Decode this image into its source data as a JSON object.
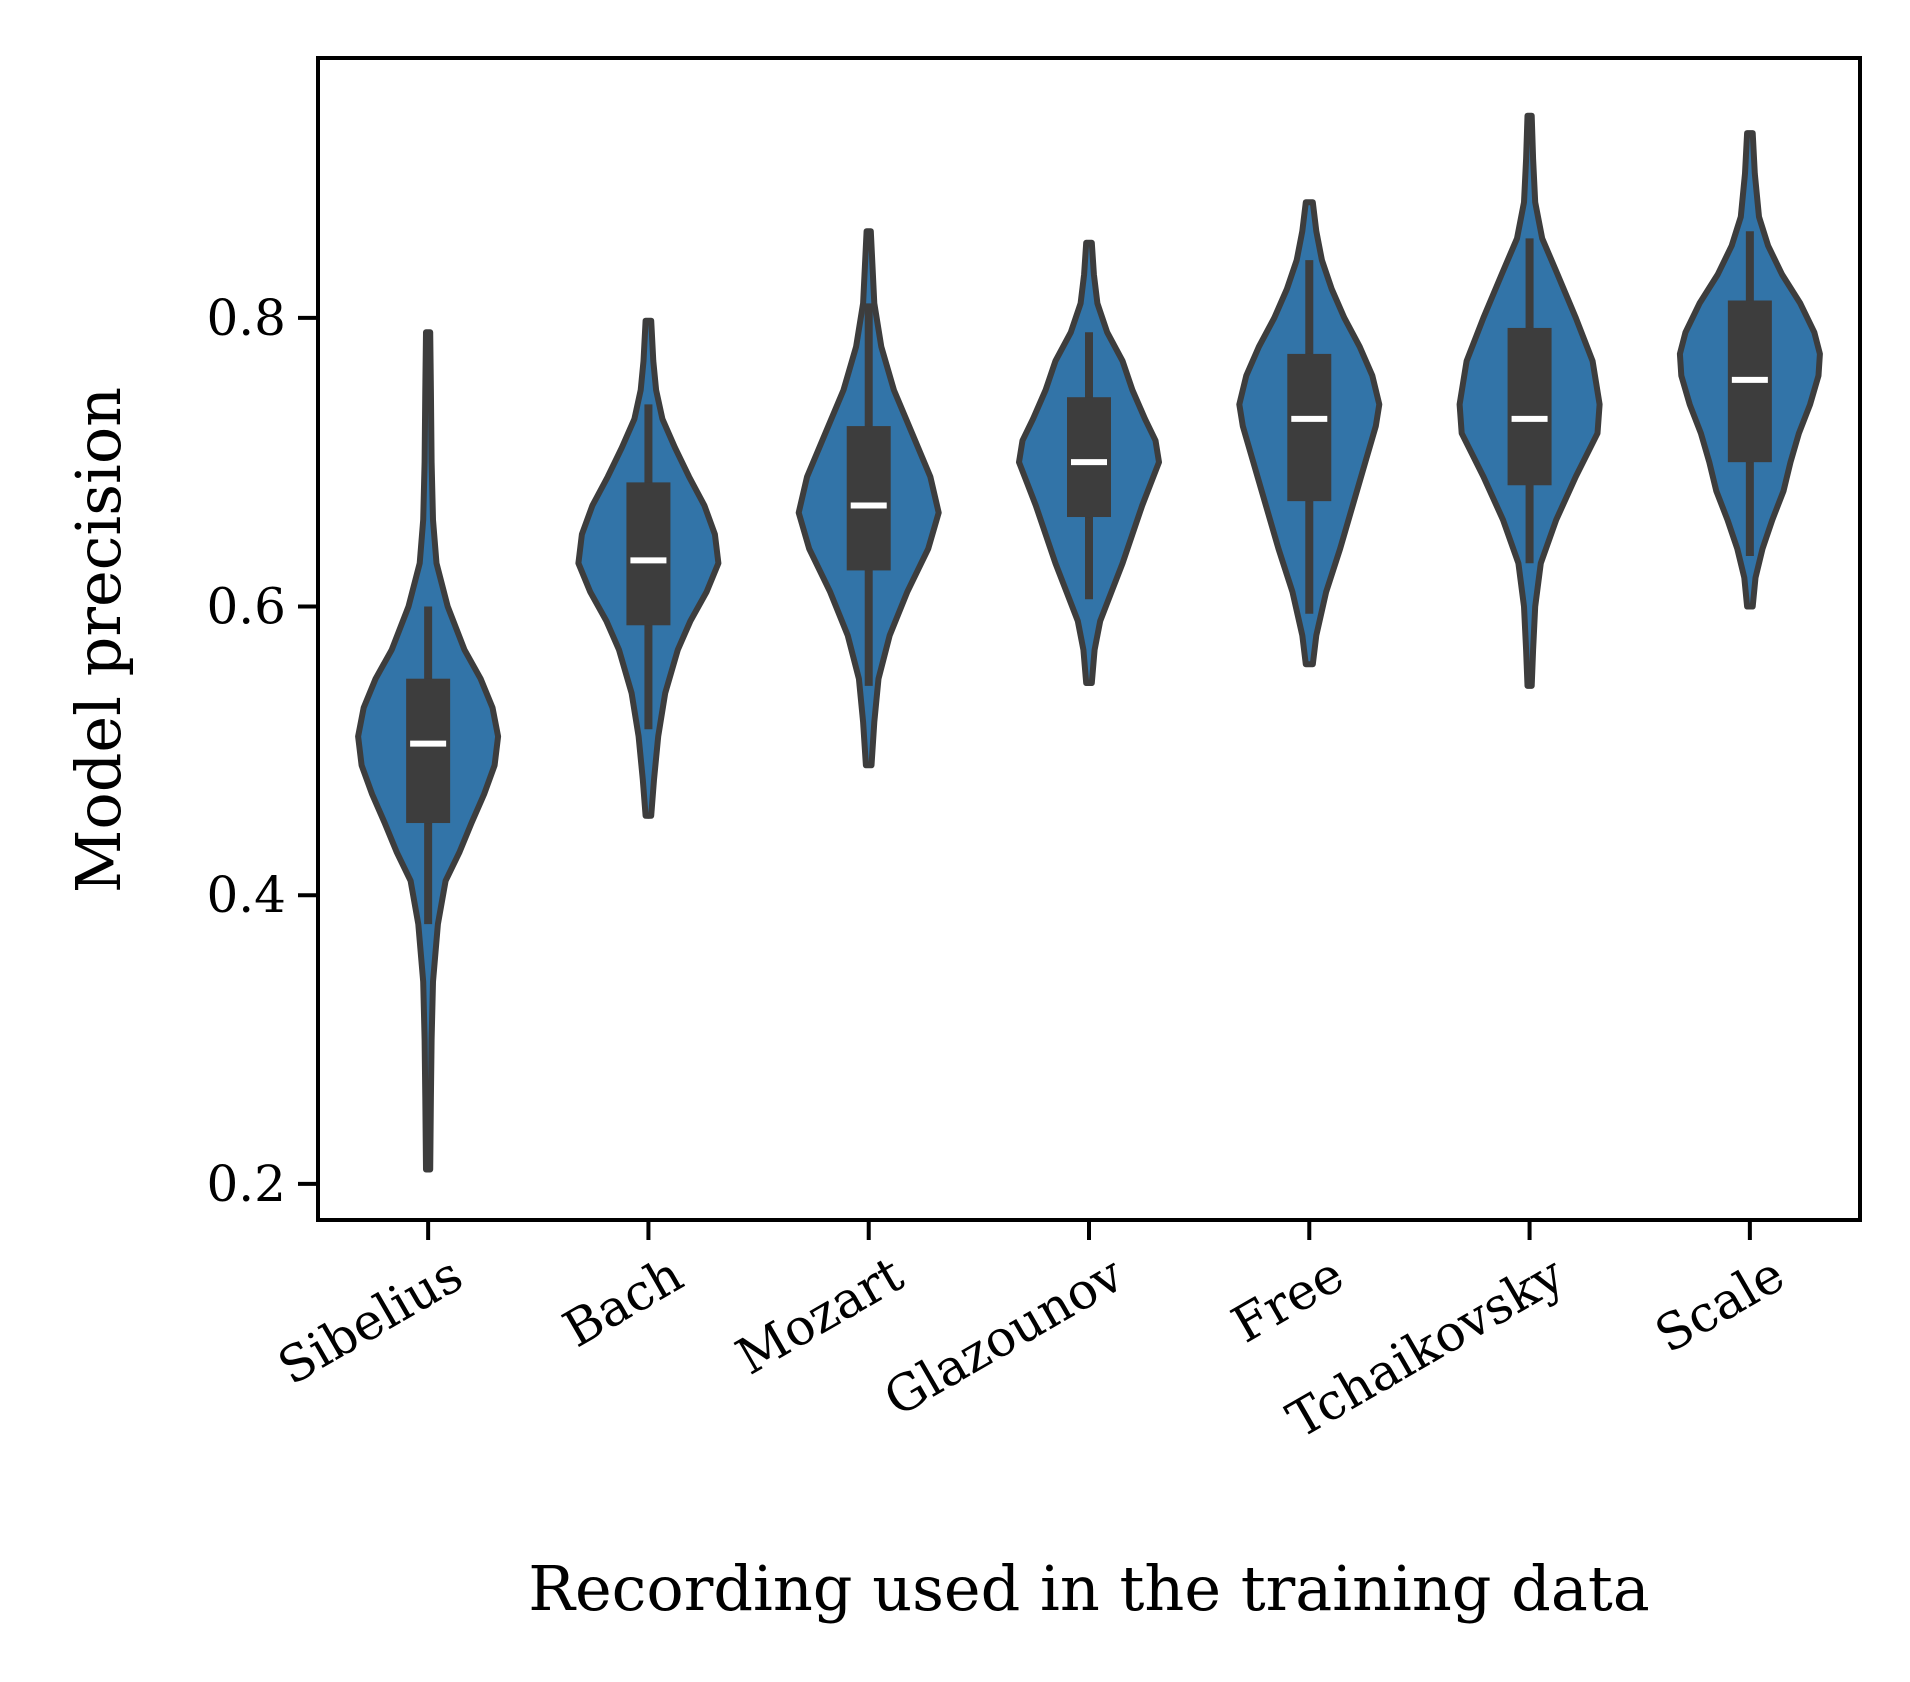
{
  "chart_data": {
    "type": "violin",
    "title": "",
    "xlabel": "Recording used in the training data",
    "ylabel": "Model precision",
    "ylim": [
      0.175,
      0.98
    ],
    "yticks": [
      0.2,
      0.4,
      0.6,
      0.8
    ],
    "ytick_labels": [
      "0.2",
      "0.4",
      "0.6",
      "0.8"
    ],
    "grid": false,
    "colors": {
      "fill": "#3274a8",
      "edge": "#3d3d3d",
      "median": "#ffffff"
    },
    "categories": [
      "Sibelius",
      "Bach",
      "Mozart",
      "Glazounov",
      "Free",
      "Tchaikovsky",
      "Scale"
    ],
    "series": [
      {
        "category": "Sibelius",
        "min": 0.21,
        "q1": 0.45,
        "median": 0.505,
        "q3": 0.55,
        "max": 0.79,
        "whisker_low": 0.38,
        "whisker_high": 0.6,
        "profile": [
          [
            0.21,
            0.03
          ],
          [
            0.26,
            0.04
          ],
          [
            0.3,
            0.05
          ],
          [
            0.34,
            0.07
          ],
          [
            0.38,
            0.14
          ],
          [
            0.41,
            0.25
          ],
          [
            0.43,
            0.45
          ],
          [
            0.45,
            0.62
          ],
          [
            0.47,
            0.8
          ],
          [
            0.49,
            0.95
          ],
          [
            0.51,
            1.0
          ],
          [
            0.53,
            0.92
          ],
          [
            0.55,
            0.75
          ],
          [
            0.57,
            0.52
          ],
          [
            0.6,
            0.28
          ],
          [
            0.63,
            0.12
          ],
          [
            0.66,
            0.07
          ],
          [
            0.7,
            0.05
          ],
          [
            0.75,
            0.04
          ],
          [
            0.79,
            0.03
          ]
        ]
      },
      {
        "category": "Bach",
        "min": 0.455,
        "q1": 0.587,
        "median": 0.632,
        "q3": 0.686,
        "max": 0.798,
        "whisker_low": 0.515,
        "whisker_high": 0.74,
        "profile": [
          [
            0.455,
            0.04
          ],
          [
            0.48,
            0.08
          ],
          [
            0.51,
            0.14
          ],
          [
            0.54,
            0.24
          ],
          [
            0.57,
            0.42
          ],
          [
            0.59,
            0.6
          ],
          [
            0.61,
            0.83
          ],
          [
            0.63,
            1.0
          ],
          [
            0.65,
            0.95
          ],
          [
            0.67,
            0.8
          ],
          [
            0.69,
            0.58
          ],
          [
            0.71,
            0.38
          ],
          [
            0.73,
            0.2
          ],
          [
            0.75,
            0.11
          ],
          [
            0.77,
            0.07
          ],
          [
            0.798,
            0.04
          ]
        ]
      },
      {
        "category": "Mozart",
        "min": 0.49,
        "q1": 0.625,
        "median": 0.67,
        "q3": 0.725,
        "max": 0.86,
        "whisker_low": 0.545,
        "whisker_high": 0.81,
        "profile": [
          [
            0.49,
            0.04
          ],
          [
            0.52,
            0.08
          ],
          [
            0.55,
            0.14
          ],
          [
            0.58,
            0.3
          ],
          [
            0.61,
            0.55
          ],
          [
            0.64,
            0.85
          ],
          [
            0.665,
            1.0
          ],
          [
            0.69,
            0.88
          ],
          [
            0.72,
            0.62
          ],
          [
            0.75,
            0.36
          ],
          [
            0.78,
            0.18
          ],
          [
            0.81,
            0.08
          ],
          [
            0.84,
            0.05
          ],
          [
            0.86,
            0.03
          ]
        ]
      },
      {
        "category": "Glazounov",
        "min": 0.547,
        "q1": 0.662,
        "median": 0.7,
        "q3": 0.745,
        "max": 0.852,
        "whisker_low": 0.605,
        "whisker_high": 0.79,
        "profile": [
          [
            0.547,
            0.04
          ],
          [
            0.57,
            0.08
          ],
          [
            0.59,
            0.16
          ],
          [
            0.61,
            0.32
          ],
          [
            0.63,
            0.48
          ],
          [
            0.65,
            0.62
          ],
          [
            0.67,
            0.76
          ],
          [
            0.685,
            0.88
          ],
          [
            0.7,
            1.0
          ],
          [
            0.715,
            0.95
          ],
          [
            0.73,
            0.8
          ],
          [
            0.75,
            0.62
          ],
          [
            0.77,
            0.48
          ],
          [
            0.79,
            0.26
          ],
          [
            0.81,
            0.12
          ],
          [
            0.83,
            0.07
          ],
          [
            0.852,
            0.04
          ]
        ]
      },
      {
        "category": "Free",
        "min": 0.56,
        "q1": 0.673,
        "median": 0.73,
        "q3": 0.775,
        "max": 0.88,
        "whisker_low": 0.595,
        "whisker_high": 0.84,
        "profile": [
          [
            0.56,
            0.05
          ],
          [
            0.58,
            0.1
          ],
          [
            0.61,
            0.24
          ],
          [
            0.64,
            0.44
          ],
          [
            0.67,
            0.62
          ],
          [
            0.7,
            0.8
          ],
          [
            0.725,
            0.95
          ],
          [
            0.74,
            1.0
          ],
          [
            0.76,
            0.9
          ],
          [
            0.78,
            0.72
          ],
          [
            0.8,
            0.5
          ],
          [
            0.82,
            0.32
          ],
          [
            0.84,
            0.18
          ],
          [
            0.86,
            0.1
          ],
          [
            0.88,
            0.05
          ]
        ]
      },
      {
        "category": "Tchaikovsky",
        "min": 0.545,
        "q1": 0.684,
        "median": 0.73,
        "q3": 0.793,
        "max": 0.94,
        "whisker_low": 0.63,
        "whisker_high": 0.855,
        "profile": [
          [
            0.545,
            0.03
          ],
          [
            0.57,
            0.05
          ],
          [
            0.6,
            0.08
          ],
          [
            0.63,
            0.16
          ],
          [
            0.66,
            0.38
          ],
          [
            0.69,
            0.66
          ],
          [
            0.72,
            0.97
          ],
          [
            0.74,
            1.0
          ],
          [
            0.77,
            0.9
          ],
          [
            0.8,
            0.66
          ],
          [
            0.83,
            0.4
          ],
          [
            0.855,
            0.18
          ],
          [
            0.88,
            0.08
          ],
          [
            0.91,
            0.05
          ],
          [
            0.94,
            0.03
          ]
        ]
      },
      {
        "category": "Scale",
        "min": 0.6,
        "q1": 0.7,
        "median": 0.757,
        "q3": 0.812,
        "max": 0.928,
        "whisker_low": 0.635,
        "whisker_high": 0.86,
        "profile": [
          [
            0.6,
            0.04
          ],
          [
            0.62,
            0.08
          ],
          [
            0.64,
            0.18
          ],
          [
            0.66,
            0.32
          ],
          [
            0.68,
            0.48
          ],
          [
            0.7,
            0.58
          ],
          [
            0.72,
            0.7
          ],
          [
            0.74,
            0.86
          ],
          [
            0.76,
            0.98
          ],
          [
            0.775,
            1.0
          ],
          [
            0.79,
            0.92
          ],
          [
            0.81,
            0.72
          ],
          [
            0.83,
            0.46
          ],
          [
            0.85,
            0.26
          ],
          [
            0.87,
            0.13
          ],
          [
            0.9,
            0.07
          ],
          [
            0.928,
            0.04
          ]
        ]
      }
    ]
  }
}
